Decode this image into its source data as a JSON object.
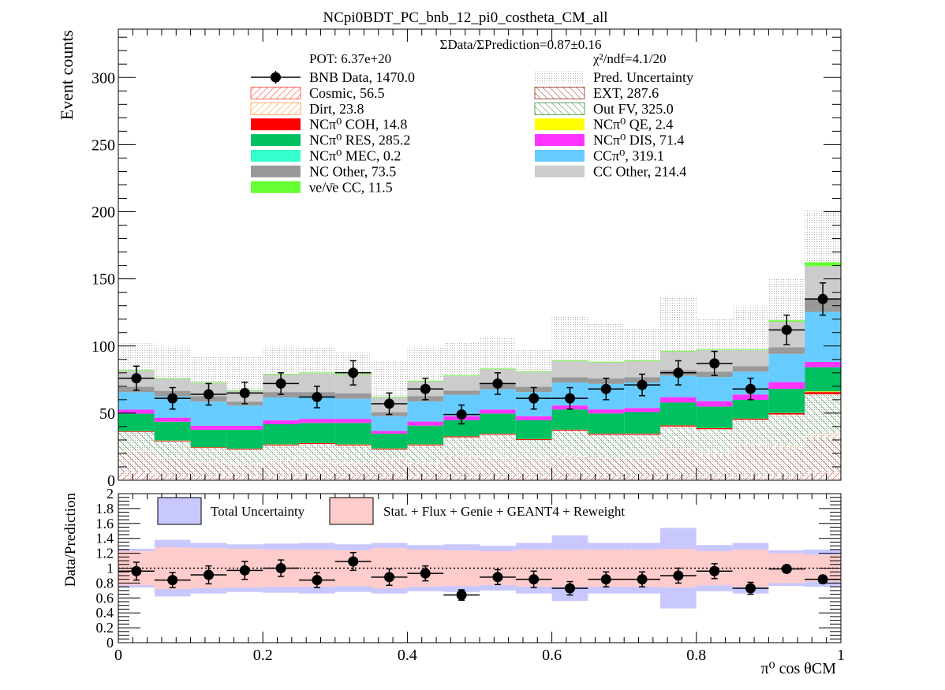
{
  "title": "NCpi0BDT_PC_bnb_12_pi0_costheta_CM_all",
  "colors": {
    "cosmic": "#ff3b2f",
    "ext": "#8b2a12",
    "dirt": "#ff9a3c",
    "outfv": "#2e8b2e",
    "ncpi0_coh": "#ff0000",
    "ncpi0_qe": "#ffff00",
    "ncpi0_res": "#00c060",
    "ncpi0_dis": "#ff33ff",
    "ncpi0_mec": "#33ffcc",
    "ccpi0": "#66ccff",
    "nc_other": "#999999",
    "cc_other": "#cccccc",
    "nue_cc": "#66ff33",
    "pred_unc": "#bbbbbb",
    "data": "#000000",
    "total_unc": "#c8c8ff",
    "stat_unc": "#ffcccc"
  },
  "chart_data": [
    {
      "type": "bar",
      "stacked": true,
      "ylabel": "Event counts",
      "ylim": [
        0,
        336
      ],
      "yticks": [
        0,
        50,
        100,
        150,
        200,
        250,
        300
      ],
      "x_edges": [
        0,
        0.05,
        0.1,
        0.15,
        0.2,
        0.25,
        0.3,
        0.35,
        0.4,
        0.45,
        0.5,
        0.55,
        0.6,
        0.65,
        0.7,
        0.75,
        0.8,
        0.85,
        0.9,
        0.95,
        1.0
      ],
      "xlim": [
        0,
        1
      ],
      "annotations": {
        "ratio_summary": "ΣData/ΣPrediction=0.87±0.16",
        "pot": "POT: 6.37e+20",
        "chi2": "χ²/ndf=4.1/20"
      },
      "legend": [
        {
          "key": "data",
          "label": "BNB Data, 1470.0",
          "style": "marker"
        },
        {
          "key": "pred_unc",
          "label": "Pred. Uncertainty",
          "style": "dots"
        },
        {
          "key": "cosmic",
          "label": "Cosmic, 56.5",
          "style": "hatch"
        },
        {
          "key": "ext",
          "label": "EXT, 287.6",
          "style": "hatch"
        },
        {
          "key": "dirt",
          "label": "Dirt, 23.8",
          "style": "hatch"
        },
        {
          "key": "outfv",
          "label": "Out FV, 325.0",
          "style": "hatch"
        },
        {
          "key": "ncpi0_coh",
          "label": "NCπ⁰ COH,  14.8",
          "style": "fill"
        },
        {
          "key": "ncpi0_qe",
          "label": "NCπ⁰ QE,  2.4",
          "style": "fill"
        },
        {
          "key": "ncpi0_res",
          "label": "NCπ⁰ RES,  285.2",
          "style": "fill"
        },
        {
          "key": "ncpi0_dis",
          "label": "NCπ⁰ DIS,  71.4",
          "style": "fill"
        },
        {
          "key": "ncpi0_mec",
          "label": "NCπ⁰ MEC,  0.2",
          "style": "fill"
        },
        {
          "key": "ccpi0",
          "label": "CCπ⁰, 319.1",
          "style": "fill"
        },
        {
          "key": "nc_other",
          "label": "NC Other, 73.5",
          "style": "fill"
        },
        {
          "key": "cc_other",
          "label": "CC Other, 214.4",
          "style": "fill"
        },
        {
          "key": "nue_cc",
          "label": "νe/ν̄e CC, 11.5",
          "style": "fill"
        }
      ],
      "series": [
        {
          "key": "cosmic",
          "values": [
            6,
            4,
            3,
            3,
            3,
            3,
            3,
            3,
            3,
            3,
            3,
            3,
            3,
            3,
            3,
            3,
            3,
            3,
            3,
            6
          ]
        },
        {
          "key": "ext",
          "values": [
            15,
            12,
            10,
            8,
            11,
            10,
            9,
            12,
            9,
            14,
            13,
            13,
            14,
            13,
            13,
            20,
            16,
            23,
            21,
            26
          ]
        },
        {
          "key": "dirt",
          "values": [
            1,
            1,
            1,
            1,
            1,
            1,
            1,
            1,
            1,
            1,
            1,
            1,
            1,
            1,
            1,
            1,
            1,
            1,
            2,
            3
          ]
        },
        {
          "key": "outfv",
          "values": [
            14,
            12,
            10,
            11,
            11,
            13,
            13,
            7,
            13,
            14,
            17,
            13,
            19,
            17,
            17,
            16,
            18,
            18,
            23,
            29
          ]
        },
        {
          "key": "ncpi0_coh",
          "values": [
            0.5,
            0.5,
            0.5,
            0.5,
            0.6,
            0.6,
            0.6,
            0.6,
            0.6,
            0.6,
            0.6,
            0.6,
            0.6,
            0.7,
            0.7,
            0.8,
            0.8,
            0.8,
            1,
            1.7
          ]
        },
        {
          "key": "ncpi0_qe",
          "values": [
            0.1,
            0.1,
            0.1,
            0.1,
            0.1,
            0.1,
            0.1,
            0.1,
            0.1,
            0.1,
            0.1,
            0.1,
            0.1,
            0.1,
            0.1,
            0.1,
            0.1,
            0.1,
            0.1,
            0.5
          ]
        },
        {
          "key": "ncpi0_res",
          "values": [
            13,
            14,
            13,
            14,
            15,
            15,
            16,
            11,
            14,
            12,
            15,
            14,
            15,
            15,
            16,
            17,
            16,
            14,
            18,
            18
          ]
        },
        {
          "key": "ncpi0_dis",
          "values": [
            3,
            3,
            3,
            3,
            3,
            3,
            3,
            2,
            3,
            3,
            3,
            3,
            3,
            3,
            3,
            4,
            4,
            4,
            5,
            4
          ]
        },
        {
          "key": "ncpi0_mec",
          "values": [
            0,
            0,
            0,
            0,
            0,
            0,
            0,
            0,
            0,
            0,
            0,
            0,
            0,
            0,
            0,
            0,
            0,
            0,
            0,
            0.2
          ]
        },
        {
          "key": "ccpi0",
          "values": [
            13,
            16,
            18,
            15,
            17,
            16,
            15,
            11,
            15,
            16,
            15,
            18,
            17,
            19,
            19,
            16,
            18,
            17,
            21,
            37
          ]
        },
        {
          "key": "nc_other",
          "values": [
            4,
            4,
            4,
            3,
            4,
            4,
            4,
            3,
            4,
            3,
            4,
            4,
            4,
            4,
            4,
            4,
            4,
            4,
            5,
            10
          ]
        },
        {
          "key": "cc_other",
          "values": [
            12,
            9,
            10,
            8,
            13,
            14,
            14,
            11,
            11,
            11,
            11,
            11,
            12,
            12,
            12,
            14,
            16,
            12,
            19,
            24
          ]
        },
        {
          "key": "nue_cc",
          "values": [
            0.5,
            0.5,
            0.5,
            0.5,
            0.5,
            0.5,
            0.5,
            0.5,
            0.5,
            0.5,
            0.5,
            0.5,
            0.5,
            0.5,
            0.5,
            0.5,
            0.5,
            0.5,
            1,
            3
          ]
        }
      ],
      "pred_unc_high": [
        102,
        100,
        92,
        92,
        100,
        99,
        95,
        89,
        100,
        103,
        107,
        97,
        122,
        117,
        114,
        137,
        121,
        130,
        151,
        201
      ],
      "data": {
        "x": [
          0.025,
          0.075,
          0.125,
          0.175,
          0.225,
          0.275,
          0.325,
          0.375,
          0.425,
          0.475,
          0.525,
          0.575,
          0.625,
          0.675,
          0.725,
          0.775,
          0.825,
          0.875,
          0.925,
          0.975
        ],
        "y": [
          76,
          61,
          64,
          65,
          72,
          62,
          80,
          57,
          68,
          49,
          72,
          61,
          61,
          68,
          71,
          80,
          87,
          68,
          112,
          135
        ],
        "yerr": [
          9,
          8,
          8,
          8,
          8,
          8,
          9,
          8,
          8,
          7,
          8,
          8,
          8,
          8,
          8,
          9,
          9,
          8,
          11,
          12
        ]
      }
    },
    {
      "type": "bar",
      "xlabel": "π⁰ cos θCM",
      "ylabel": "Data/Prediction",
      "ylim": [
        0,
        2
      ],
      "yticks": [
        0,
        0.2,
        0.4,
        0.6,
        0.8,
        1,
        1.2,
        1.4,
        1.6,
        1.8,
        2
      ],
      "xticks": [
        0,
        0.2,
        0.4,
        0.6,
        0.8,
        1
      ],
      "legend": [
        {
          "key": "total_unc",
          "label": "Total Uncertainty"
        },
        {
          "key": "stat_unc",
          "label": "Stat. + Flux + Genie + GEANT4 + Reweight"
        }
      ],
      "total_unc": {
        "low": [
          0.74,
          0.62,
          0.66,
          0.68,
          0.67,
          0.66,
          0.68,
          0.66,
          0.69,
          0.68,
          0.7,
          0.66,
          0.56,
          0.66,
          0.66,
          0.46,
          0.69,
          0.66,
          0.76,
          0.75
        ],
        "high": [
          1.26,
          1.38,
          1.34,
          1.32,
          1.33,
          1.34,
          1.32,
          1.34,
          1.31,
          1.32,
          1.3,
          1.34,
          1.44,
          1.34,
          1.34,
          1.54,
          1.31,
          1.34,
          1.24,
          1.25
        ]
      },
      "stat_unc": {
        "low": [
          0.77,
          0.72,
          0.73,
          0.74,
          0.75,
          0.75,
          0.76,
          0.73,
          0.75,
          0.76,
          0.77,
          0.75,
          0.75,
          0.75,
          0.75,
          0.74,
          0.77,
          0.75,
          0.8,
          0.82
        ],
        "high": [
          1.23,
          1.28,
          1.27,
          1.26,
          1.25,
          1.25,
          1.24,
          1.27,
          1.25,
          1.24,
          1.23,
          1.25,
          1.25,
          1.25,
          1.25,
          1.26,
          1.23,
          1.25,
          1.2,
          1.18
        ]
      },
      "reference_line": 1,
      "data": {
        "x": [
          0.025,
          0.075,
          0.125,
          0.175,
          0.225,
          0.275,
          0.325,
          0.375,
          0.425,
          0.475,
          0.525,
          0.575,
          0.625,
          0.675,
          0.725,
          0.775,
          0.825,
          0.875,
          0.925,
          0.975
        ],
        "y": [
          0.96,
          0.84,
          0.91,
          0.97,
          1.0,
          0.84,
          1.09,
          0.88,
          0.93,
          0.64,
          0.88,
          0.85,
          0.73,
          0.85,
          0.85,
          0.9,
          0.96,
          0.73,
          0.99,
          0.85
        ],
        "yerr": [
          0.12,
          0.1,
          0.12,
          0.12,
          0.11,
          0.1,
          0.12,
          0.11,
          0.1,
          0.07,
          0.1,
          0.11,
          0.09,
          0.1,
          0.1,
          0.1,
          0.1,
          0.08,
          0.05,
          0.05
        ]
      }
    }
  ]
}
